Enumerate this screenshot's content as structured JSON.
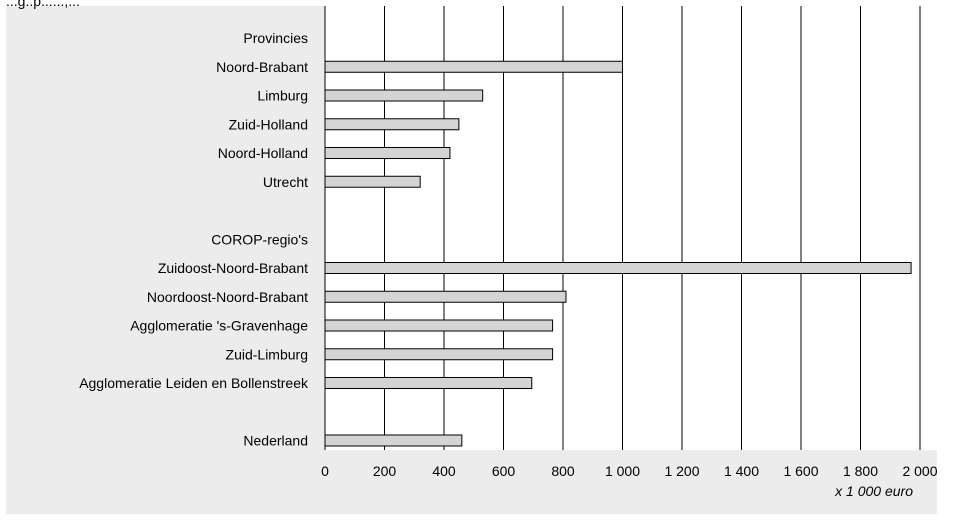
{
  "cropped_top_text": "...g..p......,...",
  "chart_data": {
    "type": "bar",
    "orientation": "horizontal",
    "categories": [
      "Provincies",
      "Noord-Brabant",
      "Limburg",
      "Zuid-Holland",
      "Noord-Holland",
      "Utrecht",
      "",
      "COROP-regio's",
      "Zuidoost-Noord-Brabant",
      "Noordoost-Noord-Brabant",
      "Agglomeratie 's-Gravenhage",
      "Zuid-Limburg",
      "Agglomeratie Leiden en Bollenstreek",
      "",
      "Nederland"
    ],
    "values": [
      null,
      1000,
      530,
      450,
      420,
      320,
      null,
      null,
      1970,
      810,
      765,
      765,
      695,
      null,
      460
    ],
    "xlim": [
      0,
      2000
    ],
    "xticks": [
      0,
      200,
      400,
      600,
      800,
      1000,
      1200,
      1400,
      1600,
      1800,
      2000
    ],
    "xtick_labels": [
      "0",
      "200",
      "400",
      "600",
      "800",
      "1 000",
      "1 200",
      "1 400",
      "1 600",
      "1 800",
      "2 000"
    ],
    "xlabel": "x 1 000 euro",
    "grid": "vertical",
    "colors": {
      "bar_fill": "#d4d4d4",
      "bar_stroke": "#000000",
      "plot_bg": "#ffffff",
      "panel_bg": "#ececec",
      "grid": "#000000"
    }
  }
}
